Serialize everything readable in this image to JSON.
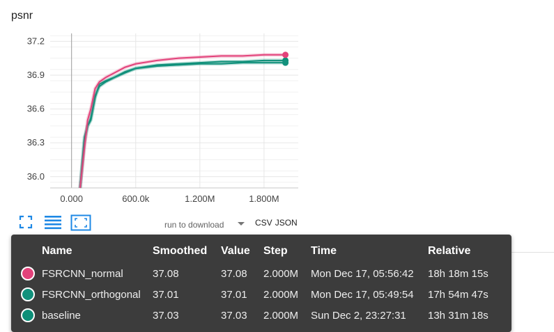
{
  "card": {
    "title": "psnr"
  },
  "colors": {
    "normal": "#e2427a",
    "orthogonal": "#12917c",
    "baseline": "#0d8f78",
    "grid": "#e6e6e6",
    "axis": "#9e9e9e"
  },
  "chart_data": {
    "type": "line",
    "title": "psnr",
    "xlabel": "",
    "ylabel": "",
    "xlim": [
      -200000,
      2120000
    ],
    "ylim": [
      35.9,
      37.27
    ],
    "x_ticks": [
      0,
      600000,
      1200000,
      1800000
    ],
    "x_tick_labels": [
      "0.000",
      "600.0k",
      "1.200M",
      "1.800M"
    ],
    "y_ticks": [
      36.0,
      36.3,
      36.6,
      36.9,
      37.2
    ],
    "y_tick_labels": [
      "36.0",
      "36.3",
      "36.6",
      "36.9",
      "37.2"
    ],
    "series": [
      {
        "name": "baseline",
        "color": "#0d8f78",
        "x": [
          80000,
          120000,
          150000,
          180000,
          220000,
          260000,
          320000,
          400000,
          500000,
          600000,
          800000,
          1000000,
          1200000,
          1400000,
          1600000,
          1800000,
          2000000
        ],
        "y": [
          35.9,
          36.35,
          36.45,
          36.5,
          36.7,
          36.82,
          36.85,
          36.88,
          36.92,
          36.96,
          36.99,
          37.0,
          37.01,
          37.02,
          37.02,
          37.03,
          37.03
        ]
      },
      {
        "name": "FSRCNN_orthogonal",
        "color": "#12917c",
        "x": [
          80000,
          120000,
          150000,
          180000,
          220000,
          260000,
          320000,
          400000,
          500000,
          600000,
          800000,
          1000000,
          1200000,
          1400000,
          1600000,
          1800000,
          2000000
        ],
        "y": [
          35.9,
          36.3,
          36.45,
          36.52,
          36.72,
          36.8,
          36.84,
          36.88,
          36.93,
          36.96,
          36.98,
          36.99,
          37.0,
          37.0,
          37.01,
          37.01,
          37.01
        ]
      },
      {
        "name": "FSRCNN_normal",
        "color": "#e2427a",
        "x": [
          80000,
          120000,
          150000,
          180000,
          220000,
          260000,
          320000,
          400000,
          500000,
          600000,
          800000,
          1000000,
          1200000,
          1400000,
          1600000,
          1800000,
          2000000
        ],
        "y": [
          35.9,
          36.25,
          36.5,
          36.6,
          36.78,
          36.84,
          36.88,
          36.92,
          36.97,
          37.0,
          37.03,
          37.05,
          37.06,
          37.07,
          37.07,
          37.08,
          37.08
        ]
      }
    ]
  },
  "controls": {
    "expand_icon": "fullscreen-icon",
    "log_icon": "list-lines-icon",
    "fit_icon": "fit-domain-icon",
    "download_label": "run to download",
    "csv_label": "CSV",
    "json_label": "JSON"
  },
  "tooltip": {
    "headers": [
      "Name",
      "Smoothed",
      "Value",
      "Step",
      "Time",
      "Relative"
    ],
    "rows": [
      {
        "color": "#e2427a",
        "name": "FSRCNN_normal",
        "smoothed": "37.08",
        "value": "37.08",
        "step": "2.000M",
        "time": "Mon Dec 17, 05:56:42",
        "relative": "18h 18m 15s"
      },
      {
        "color": "#12917c",
        "name": "FSRCNN_orthogonal",
        "smoothed": "37.01",
        "value": "37.01",
        "step": "2.000M",
        "time": "Mon Dec 17, 05:49:54",
        "relative": "17h 54m 47s"
      },
      {
        "color": "#0d8f78",
        "name": "baseline",
        "smoothed": "37.03",
        "value": "37.03",
        "step": "2.000M",
        "time": "Sun Dec 2, 23:27:31",
        "relative": "13h 31m 18s"
      }
    ]
  }
}
